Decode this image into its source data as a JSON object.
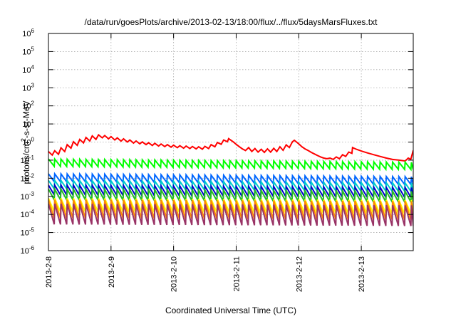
{
  "chart_data": {
    "type": "line",
    "title": "/data/run/goesPlots/archive/2013-02-13/18:00/flux/../flux/5daysMarsFluxes.txt",
    "xlabel": "Coordinated Universal Time (UTC)",
    "ylabel": {
      "prefix": "protons/cm",
      "sup": "2",
      "suffix": "-s-sr-MeV"
    },
    "xlim": [
      0,
      5.83
    ],
    "ylim": [
      -6,
      6
    ],
    "yscale": "log",
    "grid": true,
    "x_ticks": [
      {
        "x": 0,
        "label": "2013-2-8"
      },
      {
        "x": 1,
        "label": "2013-2-9"
      },
      {
        "x": 2,
        "label": "2013-2-10"
      },
      {
        "x": 3,
        "label": "2013-2-11"
      },
      {
        "x": 4,
        "label": "2013-2-12"
      },
      {
        "x": 5,
        "label": "2013-2-13"
      }
    ],
    "y_ticks": [
      {
        "exp": -6,
        "base": "10",
        "sup": "-6"
      },
      {
        "exp": -5,
        "base": "10",
        "sup": "-5"
      },
      {
        "exp": -4,
        "base": "10",
        "sup": "-4"
      },
      {
        "exp": -3,
        "base": "10",
        "sup": "-3"
      },
      {
        "exp": -2,
        "base": "10",
        "sup": "-2"
      },
      {
        "exp": -1,
        "base": "10",
        "sup": "-1"
      },
      {
        "exp": 0,
        "base": "10",
        "sup": "0"
      },
      {
        "exp": 1,
        "base": "10",
        "sup": "1"
      },
      {
        "exp": 2,
        "base": "10",
        "sup": "2"
      },
      {
        "exp": 3,
        "base": "10",
        "sup": "3"
      },
      {
        "exp": 4,
        "base": "10",
        "sup": "4"
      },
      {
        "exp": 5,
        "base": "10",
        "sup": "5"
      },
      {
        "exp": 6,
        "base": "10",
        "sup": "6"
      }
    ],
    "series": [
      {
        "color": "#ff0000",
        "points": [
          [
            0.0,
            0.3
          ],
          [
            0.06,
            0.19
          ],
          [
            0.1,
            0.33
          ],
          [
            0.16,
            0.21
          ],
          [
            0.2,
            0.48
          ],
          [
            0.26,
            0.3
          ],
          [
            0.3,
            0.72
          ],
          [
            0.36,
            0.46
          ],
          [
            0.4,
            1.05
          ],
          [
            0.46,
            0.66
          ],
          [
            0.5,
            1.4
          ],
          [
            0.56,
            0.9
          ],
          [
            0.6,
            1.8
          ],
          [
            0.66,
            1.15
          ],
          [
            0.7,
            2.2
          ],
          [
            0.76,
            1.4
          ],
          [
            0.8,
            2.5
          ],
          [
            0.86,
            1.7
          ],
          [
            0.9,
            2.3
          ],
          [
            0.96,
            1.5
          ],
          [
            1.0,
            2.0
          ],
          [
            1.06,
            1.3
          ],
          [
            1.1,
            1.7
          ],
          [
            1.16,
            1.12
          ],
          [
            1.2,
            1.5
          ],
          [
            1.26,
            1.0
          ],
          [
            1.3,
            1.3
          ],
          [
            1.36,
            0.88
          ],
          [
            1.4,
            1.15
          ],
          [
            1.46,
            0.8
          ],
          [
            1.5,
            1.02
          ],
          [
            1.56,
            0.72
          ],
          [
            1.6,
            0.92
          ],
          [
            1.66,
            0.65
          ],
          [
            1.7,
            0.85
          ],
          [
            1.76,
            0.6
          ],
          [
            1.8,
            0.78
          ],
          [
            1.86,
            0.56
          ],
          [
            1.9,
            0.72
          ],
          [
            1.96,
            0.52
          ],
          [
            2.0,
            0.67
          ],
          [
            2.06,
            0.49
          ],
          [
            2.1,
            0.63
          ],
          [
            2.16,
            0.46
          ],
          [
            2.2,
            0.6
          ],
          [
            2.26,
            0.44
          ],
          [
            2.3,
            0.57
          ],
          [
            2.36,
            0.42
          ],
          [
            2.4,
            0.55
          ],
          [
            2.46,
            0.4
          ],
          [
            2.5,
            0.58
          ],
          [
            2.56,
            0.44
          ],
          [
            2.6,
            0.72
          ],
          [
            2.66,
            0.55
          ],
          [
            2.7,
            0.95
          ],
          [
            2.76,
            0.75
          ],
          [
            2.8,
            1.3
          ],
          [
            2.86,
            1.05
          ],
          [
            2.88,
            1.55
          ],
          [
            2.95,
            1.05
          ],
          [
            3.0,
            0.75
          ],
          [
            3.05,
            0.55
          ],
          [
            3.1,
            0.42
          ],
          [
            3.15,
            0.34
          ],
          [
            3.2,
            0.5
          ],
          [
            3.25,
            0.3
          ],
          [
            3.3,
            0.44
          ],
          [
            3.35,
            0.28
          ],
          [
            3.4,
            0.4
          ],
          [
            3.45,
            0.27
          ],
          [
            3.5,
            0.42
          ],
          [
            3.55,
            0.28
          ],
          [
            3.6,
            0.45
          ],
          [
            3.65,
            0.3
          ],
          [
            3.7,
            0.55
          ],
          [
            3.75,
            0.35
          ],
          [
            3.8,
            0.7
          ],
          [
            3.85,
            0.5
          ],
          [
            3.9,
            1.05
          ],
          [
            3.93,
            1.25
          ],
          [
            4.0,
            0.8
          ],
          [
            4.05,
            0.55
          ],
          [
            4.1,
            0.42
          ],
          [
            4.15,
            0.34
          ],
          [
            4.2,
            0.27
          ],
          [
            4.25,
            0.22
          ],
          [
            4.3,
            0.18
          ],
          [
            4.35,
            0.15
          ],
          [
            4.4,
            0.13
          ],
          [
            4.45,
            0.12
          ],
          [
            4.5,
            0.13
          ],
          [
            4.55,
            0.11
          ],
          [
            4.6,
            0.15
          ],
          [
            4.65,
            0.12
          ],
          [
            4.7,
            0.2
          ],
          [
            4.75,
            0.16
          ],
          [
            4.8,
            0.28
          ],
          [
            4.85,
            0.24
          ],
          [
            4.86,
            0.5
          ],
          [
            4.92,
            0.4
          ],
          [
            5.0,
            0.32
          ],
          [
            5.1,
            0.25
          ],
          [
            5.2,
            0.2
          ],
          [
            5.3,
            0.16
          ],
          [
            5.4,
            0.13
          ],
          [
            5.5,
            0.11
          ],
          [
            5.6,
            0.1
          ],
          [
            5.7,
            0.09
          ],
          [
            5.75,
            0.13
          ],
          [
            5.79,
            0.11
          ],
          [
            5.83,
            0.35
          ]
        ]
      },
      {
        "color": "#00ff00",
        "base": 0.055,
        "amp": 2.1,
        "decay": 0.02,
        "period": 0.1
      },
      {
        "color": "#0066ff",
        "base": 0.008,
        "amp": 2.2,
        "decay": 0.018,
        "period": 0.1
      },
      {
        "color": "#00cccc",
        "base": 0.0033,
        "amp": 2.3,
        "decay": 0.016,
        "period": 0.1
      },
      {
        "color": "#0000cc",
        "base": 0.0016,
        "amp": 2.6,
        "decay": 0.015,
        "period": 0.1
      },
      {
        "color": "#22bb22",
        "base": 0.0009,
        "amp": 2.8,
        "decay": 0.014,
        "period": 0.1
      },
      {
        "color": "#ffff00",
        "base": 0.00022,
        "amp": 3.6,
        "decay": 0.012,
        "period": 0.1
      },
      {
        "color": "#ff8c00",
        "base": 0.00012,
        "amp": 5.5,
        "decay": 0.01,
        "period": 0.1
      },
      {
        "color": "#993366",
        "base": 6e-05,
        "amp": 6.5,
        "decay": 0.01,
        "period": 0.1
      }
    ]
  }
}
